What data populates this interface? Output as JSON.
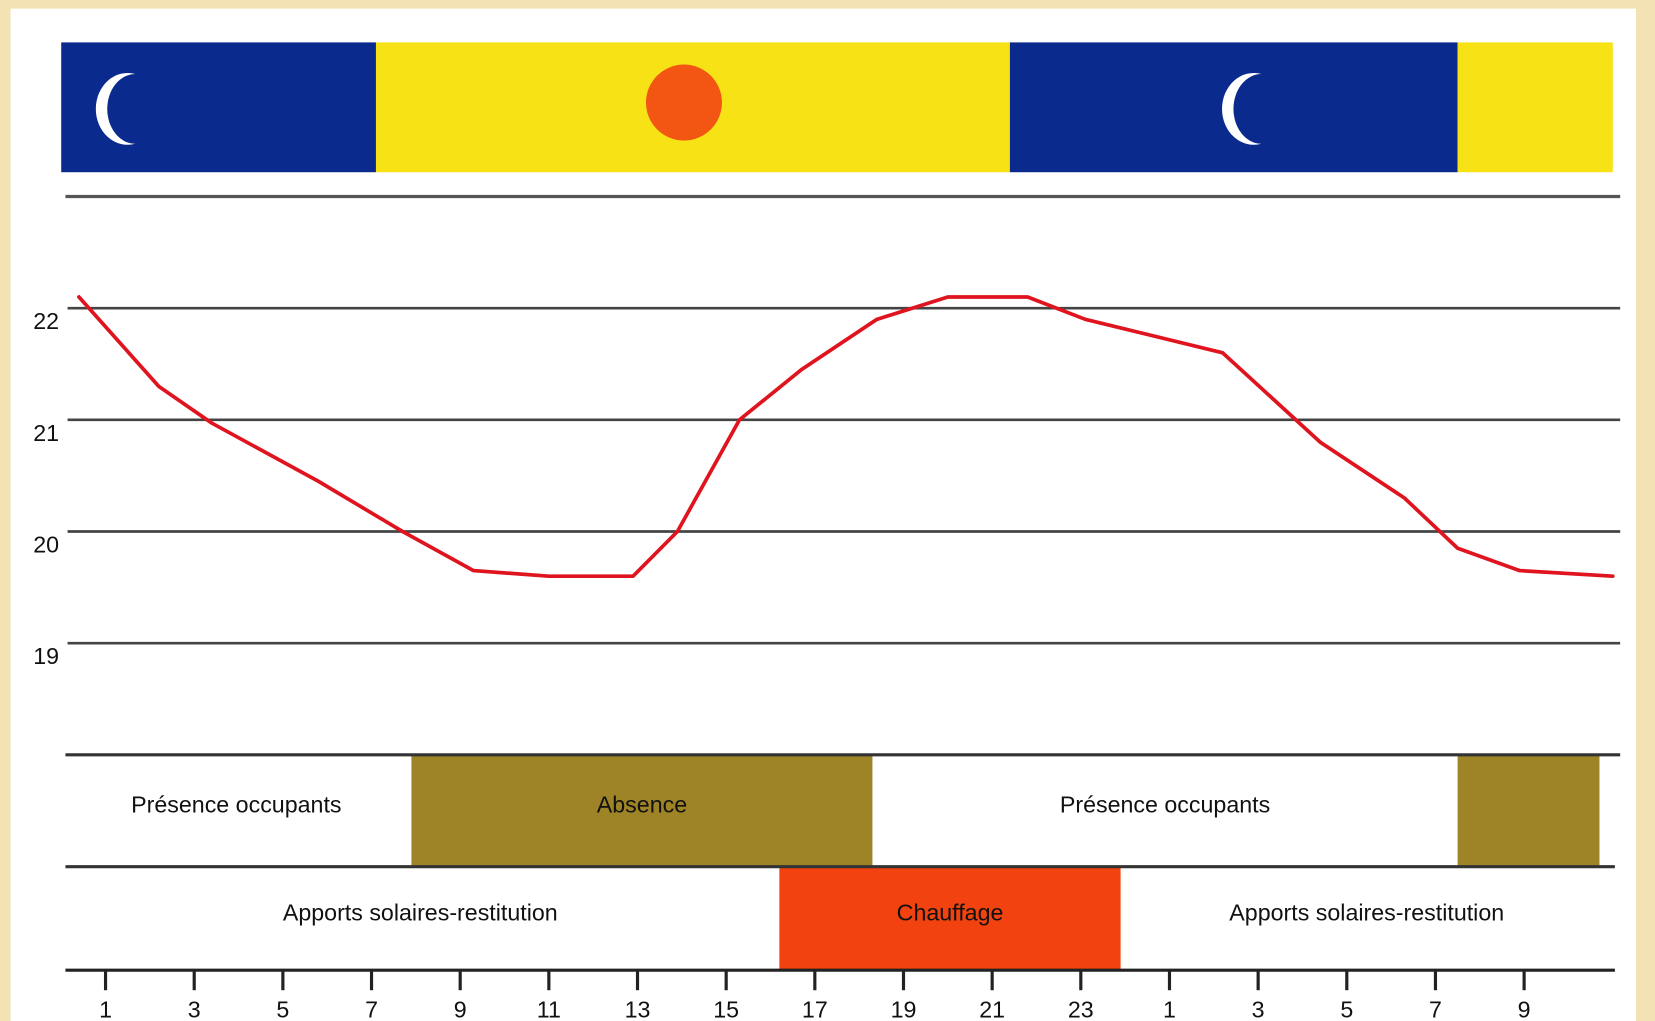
{
  "chart_data": {
    "type": "line",
    "xlim": [
      0,
      35
    ],
    "xticks": [
      1,
      3,
      5,
      7,
      9,
      11,
      13,
      15,
      17,
      19,
      21,
      23,
      {
        "value": 25,
        "label": "1"
      },
      {
        "value": 27,
        "label": "3"
      },
      {
        "value": 29,
        "label": "5"
      },
      {
        "value": 31,
        "label": "7"
      },
      {
        "value": 33,
        "label": "9"
      }
    ],
    "ylim": [
      18,
      23
    ],
    "yticks": [
      19,
      20,
      21,
      22
    ],
    "grid": true,
    "series": [
      {
        "color": "#e0141e",
        "x": [
          0.4,
          2.2,
          3.4,
          5.8,
          7.7,
          9.3,
          11,
          12.9,
          13.9,
          15.3,
          16.7,
          18.4,
          20,
          21.8,
          23.1,
          26.2,
          28.4,
          30.3,
          31.5,
          32.9,
          35
        ],
        "values": [
          22.1,
          21.3,
          20.97,
          20.45,
          20.0,
          19.65,
          19.6,
          19.6,
          20.0,
          21.0,
          21.45,
          21.9,
          22.1,
          22.1,
          21.9,
          21.6,
          20.8,
          20.3,
          19.85,
          19.65,
          19.6
        ]
      }
    ],
    "sky_bands": [
      {
        "start": 0,
        "end": 7.1,
        "color": "#0b2a8e"
      },
      {
        "start": 7.1,
        "end": 21.4,
        "color": "#f7e315"
      },
      {
        "start": 21.4,
        "end": 31.5,
        "color": "#0b2a8e"
      },
      {
        "start": 31.5,
        "end": 35,
        "color": "#f7e315"
      }
    ],
    "occupancy_bands": [
      {
        "start": 0,
        "end": 7.9,
        "label": "Présence occupants",
        "color": "#ffffff"
      },
      {
        "start": 7.9,
        "end": 18.3,
        "label": "Absence",
        "color": "#9e8426"
      },
      {
        "start": 18.3,
        "end": 31.5,
        "label": "Présence occupants",
        "color": "#ffffff"
      },
      {
        "start": 31.5,
        "end": 34.7,
        "color": "#9e8426"
      }
    ],
    "heating_bands": [
      {
        "start": 0,
        "end": 16.2,
        "label": "Apports solaires-restitution",
        "color": "#ffffff"
      },
      {
        "start": 16.2,
        "end": 23.9,
        "label": "Chauffage",
        "color": "#f2420f"
      },
      {
        "start": 23.9,
        "end": 35,
        "label": "Apports solaires-restitution",
        "color": "#ffffff"
      }
    ]
  }
}
